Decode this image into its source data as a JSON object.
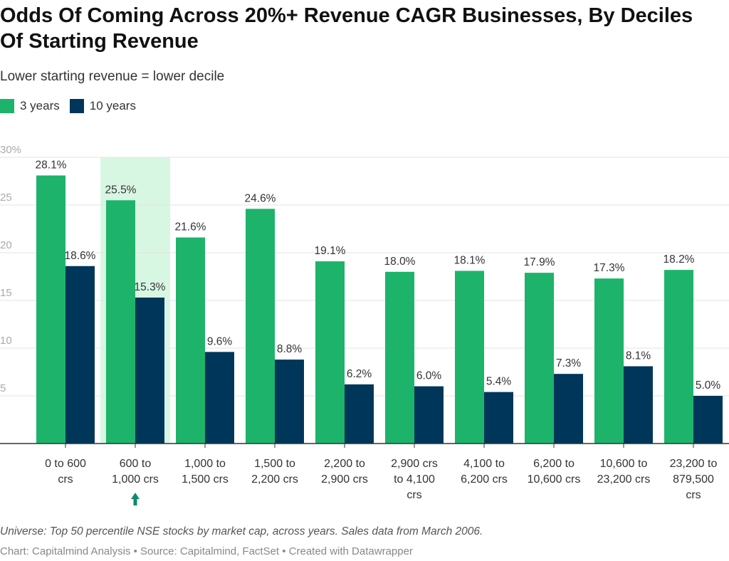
{
  "title": "Odds Of Coming Across 20%+ Revenue CAGR Businesses, By Deciles Of Starting Revenue",
  "subtitle": "Lower starting revenue = lower decile",
  "notes": "Universe: Top 50 percentile NSE stocks by market cap, across years. Sales data from March 2006.",
  "credits": "Chart: Capitalmind Analysis • Source: Capitalmind, FactSet • Created with Datawrapper",
  "colors": {
    "3 years": "#1db36b",
    "10 years": "#003659",
    "highlight": "#d8f7e3",
    "arrow": "#0f8a6a"
  },
  "chart_data": {
    "type": "bar",
    "categories": [
      "0 to 600 crs",
      "600 to 1,000 crs",
      "1,000 to 1,500 crs",
      "1,500 to 2,200 crs",
      "2,200 to 2,900 crs",
      "2,900 crs to 4,100 crs",
      "4,100 to 6,200 crs",
      "6,200 to 10,600 crs",
      "10,600 to 23,200 crs",
      "23,200 to 879,500 crs"
    ],
    "category_lines": [
      [
        "0 to 600",
        "crs"
      ],
      [
        "600 to",
        "1,000 crs"
      ],
      [
        "1,000 to",
        "1,500 crs"
      ],
      [
        "1,500 to",
        "2,200 crs"
      ],
      [
        "2,200 to",
        "2,900 crs"
      ],
      [
        "2,900 crs",
        "to 4,100",
        "crs"
      ],
      [
        "4,100 to",
        "6,200 crs"
      ],
      [
        "6,200 to",
        "10,600 crs"
      ],
      [
        "10,600 to",
        "23,200 crs"
      ],
      [
        "23,200 to",
        "879,500",
        "crs"
      ]
    ],
    "series": [
      {
        "name": "3 years",
        "values": [
          28.1,
          25.5,
          21.6,
          24.6,
          19.1,
          18.0,
          18.1,
          17.9,
          17.3,
          18.2
        ]
      },
      {
        "name": "10 years",
        "values": [
          18.6,
          15.3,
          9.6,
          8.8,
          6.2,
          6.0,
          5.4,
          7.3,
          8.1,
          5.0
        ]
      }
    ],
    "ylim": [
      0,
      30
    ],
    "yticks": [
      "30%",
      "25",
      "20",
      "15",
      "10",
      "5"
    ],
    "ytick_values": [
      30,
      25,
      20,
      15,
      10,
      5
    ],
    "grid": true,
    "highlighted_category": "600 to 1,000 crs",
    "legend": "top-left"
  }
}
